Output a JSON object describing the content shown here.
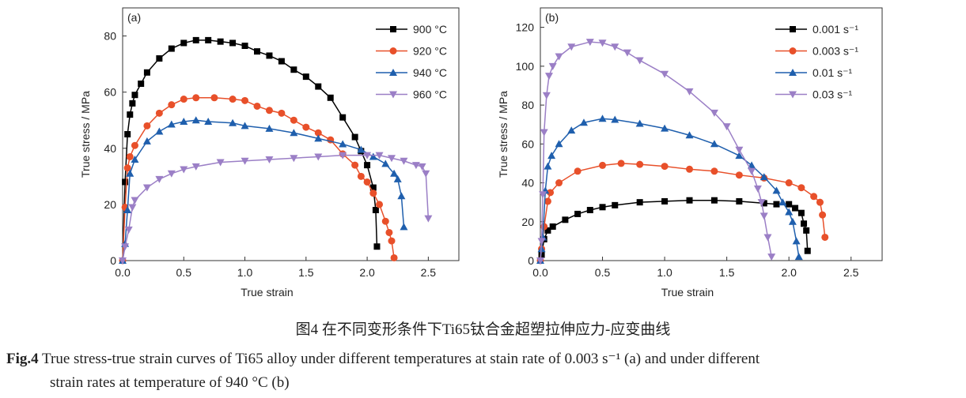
{
  "chart_data": [
    {
      "type": "line",
      "panel_label": "(a)",
      "xlabel": "True strain",
      "ylabel": "True stress / MPa",
      "xlim": [
        0,
        2.75
      ],
      "ylim": [
        0,
        90
      ],
      "xticks": [
        "0.0",
        "0.5",
        "1.0",
        "1.5",
        "2.0",
        "2.5"
      ],
      "yticks": [
        "0",
        "20",
        "40",
        "60",
        "80"
      ],
      "grid": false,
      "legend": "top-right",
      "series": [
        {
          "name": "900 °C",
          "color": "#000000",
          "marker": "square",
          "points": [
            [
              0,
              0
            ],
            [
              0.02,
              28
            ],
            [
              0.04,
              45
            ],
            [
              0.06,
              52
            ],
            [
              0.08,
              56
            ],
            [
              0.1,
              59
            ],
            [
              0.15,
              63
            ],
            [
              0.2,
              67
            ],
            [
              0.3,
              72
            ],
            [
              0.4,
              75.5
            ],
            [
              0.5,
              77.5
            ],
            [
              0.6,
              78.5
            ],
            [
              0.7,
              78.5
            ],
            [
              0.8,
              78
            ],
            [
              0.9,
              77.5
            ],
            [
              1.0,
              76.5
            ],
            [
              1.1,
              74.5
            ],
            [
              1.2,
              73
            ],
            [
              1.3,
              71
            ],
            [
              1.4,
              68
            ],
            [
              1.5,
              65.5
            ],
            [
              1.6,
              62
            ],
            [
              1.7,
              58
            ],
            [
              1.8,
              51
            ],
            [
              1.9,
              44
            ],
            [
              1.95,
              39
            ],
            [
              2.0,
              34
            ],
            [
              2.05,
              26
            ],
            [
              2.07,
              18
            ],
            [
              2.08,
              5
            ]
          ]
        },
        {
          "name": "920 °C",
          "color": "#e8502a",
          "marker": "circle",
          "points": [
            [
              0,
              0
            ],
            [
              0.02,
              19
            ],
            [
              0.04,
              33
            ],
            [
              0.06,
              37
            ],
            [
              0.1,
              41
            ],
            [
              0.2,
              48
            ],
            [
              0.3,
              52.5
            ],
            [
              0.4,
              55.5
            ],
            [
              0.5,
              57.5
            ],
            [
              0.6,
              58
            ],
            [
              0.75,
              58
            ],
            [
              0.9,
              57.5
            ],
            [
              1.0,
              57
            ],
            [
              1.1,
              55
            ],
            [
              1.2,
              53.5
            ],
            [
              1.3,
              52.5
            ],
            [
              1.4,
              50
            ],
            [
              1.5,
              47.5
            ],
            [
              1.6,
              45.5
            ],
            [
              1.7,
              43
            ],
            [
              1.8,
              38
            ],
            [
              1.9,
              34
            ],
            [
              1.95,
              30
            ],
            [
              2.0,
              28
            ],
            [
              2.05,
              24
            ],
            [
              2.1,
              20
            ],
            [
              2.15,
              14
            ],
            [
              2.18,
              10
            ],
            [
              2.2,
              7
            ],
            [
              2.22,
              1
            ]
          ]
        },
        {
          "name": "940 °C",
          "color": "#1f5fad",
          "marker": "triangle-up",
          "points": [
            [
              0,
              0
            ],
            [
              0.02,
              6
            ],
            [
              0.04,
              18
            ],
            [
              0.06,
              31
            ],
            [
              0.1,
              36
            ],
            [
              0.2,
              42.5
            ],
            [
              0.3,
              46
            ],
            [
              0.4,
              48.5
            ],
            [
              0.5,
              49.5
            ],
            [
              0.6,
              50
            ],
            [
              0.7,
              49.5
            ],
            [
              0.9,
              49
            ],
            [
              1.0,
              48
            ],
            [
              1.2,
              47
            ],
            [
              1.4,
              45.5
            ],
            [
              1.6,
              43.5
            ],
            [
              1.8,
              41.5
            ],
            [
              1.95,
              39.5
            ],
            [
              2.05,
              37
            ],
            [
              2.15,
              34.5
            ],
            [
              2.22,
              31
            ],
            [
              2.25,
              29
            ],
            [
              2.28,
              23
            ],
            [
              2.3,
              12
            ]
          ]
        },
        {
          "name": "960 °C",
          "color": "#9b7fc6",
          "marker": "triangle-down",
          "points": [
            [
              0,
              0
            ],
            [
              0.02,
              5
            ],
            [
              0.05,
              11
            ],
            [
              0.08,
              19
            ],
            [
              0.1,
              21.5
            ],
            [
              0.2,
              26
            ],
            [
              0.3,
              29
            ],
            [
              0.4,
              31
            ],
            [
              0.5,
              32.5
            ],
            [
              0.6,
              33.5
            ],
            [
              0.8,
              35
            ],
            [
              1.0,
              35.5
            ],
            [
              1.2,
              36
            ],
            [
              1.4,
              36.5
            ],
            [
              1.6,
              37
            ],
            [
              1.8,
              37.5
            ],
            [
              2.0,
              37.5
            ],
            [
              2.1,
              37.5
            ],
            [
              2.2,
              36.5
            ],
            [
              2.3,
              35.5
            ],
            [
              2.4,
              34
            ],
            [
              2.45,
              33.5
            ],
            [
              2.48,
              31
            ],
            [
              2.5,
              15
            ]
          ]
        }
      ]
    },
    {
      "type": "line",
      "panel_label": "(b)",
      "xlabel": "True strain",
      "ylabel": "True stress / MPa",
      "xlim": [
        0,
        2.75
      ],
      "ylim": [
        0,
        130
      ],
      "xticks": [
        "0.0",
        "0.5",
        "1.0",
        "1.5",
        "2.0",
        "2.5"
      ],
      "yticks": [
        "0",
        "20",
        "40",
        "60",
        "80",
        "100",
        "120"
      ],
      "grid": false,
      "legend": "top-right",
      "series": [
        {
          "name": "0.001 s⁻¹",
          "color": "#000000",
          "marker": "square",
          "points": [
            [
              0,
              0
            ],
            [
              0.01,
              3
            ],
            [
              0.03,
              11
            ],
            [
              0.06,
              15.5
            ],
            [
              0.1,
              17.5
            ],
            [
              0.2,
              21
            ],
            [
              0.3,
              24
            ],
            [
              0.4,
              26
            ],
            [
              0.5,
              27.5
            ],
            [
              0.6,
              28.5
            ],
            [
              0.8,
              30
            ],
            [
              1.0,
              30.5
            ],
            [
              1.2,
              31
            ],
            [
              1.4,
              31
            ],
            [
              1.6,
              30.5
            ],
            [
              1.8,
              29.5
            ],
            [
              1.9,
              29
            ],
            [
              2.0,
              29
            ],
            [
              2.05,
              27
            ],
            [
              2.1,
              24.5
            ],
            [
              2.12,
              19
            ],
            [
              2.14,
              15.5
            ],
            [
              2.15,
              5
            ]
          ]
        },
        {
          "name": "0.003 s⁻¹",
          "color": "#e8502a",
          "marker": "circle",
          "points": [
            [
              0,
              0
            ],
            [
              0.01,
              6
            ],
            [
              0.03,
              17.5
            ],
            [
              0.06,
              30.5
            ],
            [
              0.08,
              35
            ],
            [
              0.15,
              40
            ],
            [
              0.3,
              46
            ],
            [
              0.5,
              49
            ],
            [
              0.65,
              50
            ],
            [
              0.8,
              49.5
            ],
            [
              1.0,
              48.5
            ],
            [
              1.2,
              47
            ],
            [
              1.4,
              46
            ],
            [
              1.6,
              44
            ],
            [
              1.8,
              42.5
            ],
            [
              2.0,
              40
            ],
            [
              2.1,
              37.5
            ],
            [
              2.2,
              33
            ],
            [
              2.25,
              30
            ],
            [
              2.27,
              23.5
            ],
            [
              2.29,
              12
            ]
          ]
        },
        {
          "name": "0.01 s⁻¹",
          "color": "#1f5fad",
          "marker": "triangle-up",
          "points": [
            [
              0,
              0
            ],
            [
              0.01,
              6
            ],
            [
              0.02,
              12
            ],
            [
              0.04,
              36
            ],
            [
              0.06,
              48.5
            ],
            [
              0.09,
              54
            ],
            [
              0.15,
              60
            ],
            [
              0.25,
              67
            ],
            [
              0.35,
              71
            ],
            [
              0.5,
              73
            ],
            [
              0.6,
              72.5
            ],
            [
              0.8,
              70.5
            ],
            [
              1.0,
              68
            ],
            [
              1.2,
              64.5
            ],
            [
              1.4,
              60
            ],
            [
              1.6,
              54
            ],
            [
              1.7,
              49
            ],
            [
              1.8,
              43
            ],
            [
              1.9,
              36
            ],
            [
              1.95,
              30
            ],
            [
              2.0,
              25
            ],
            [
              2.03,
              20
            ],
            [
              2.06,
              10
            ],
            [
              2.08,
              2
            ]
          ]
        },
        {
          "name": "0.03 s⁻¹",
          "color": "#9b7fc6",
          "marker": "triangle-down",
          "points": [
            [
              0,
              0
            ],
            [
              0.01,
              10
            ],
            [
              0.02,
              34
            ],
            [
              0.03,
              66
            ],
            [
              0.05,
              85
            ],
            [
              0.07,
              95
            ],
            [
              0.1,
              100
            ],
            [
              0.15,
              105
            ],
            [
              0.25,
              110
            ],
            [
              0.4,
              112.5
            ],
            [
              0.5,
              112
            ],
            [
              0.6,
              110
            ],
            [
              0.7,
              107
            ],
            [
              0.8,
              103
            ],
            [
              1.0,
              96
            ],
            [
              1.2,
              87
            ],
            [
              1.4,
              76
            ],
            [
              1.5,
              69
            ],
            [
              1.6,
              57
            ],
            [
              1.7,
              46
            ],
            [
              1.75,
              37
            ],
            [
              1.78,
              30
            ],
            [
              1.8,
              23
            ],
            [
              1.83,
              12
            ],
            [
              1.86,
              2
            ]
          ]
        }
      ]
    }
  ],
  "caption": {
    "cn": "图4 在不同变形条件下Ti65钛合金超塑拉伸应力-应变曲线",
    "en_label": "Fig.4",
    "en_line1": " True stress-true strain curves of Ti65 alloy under different temperatures at stain rate of 0.003 s⁻¹ (a) and under different",
    "en_line2": "strain rates at temperature of 940 °C  (b)"
  }
}
